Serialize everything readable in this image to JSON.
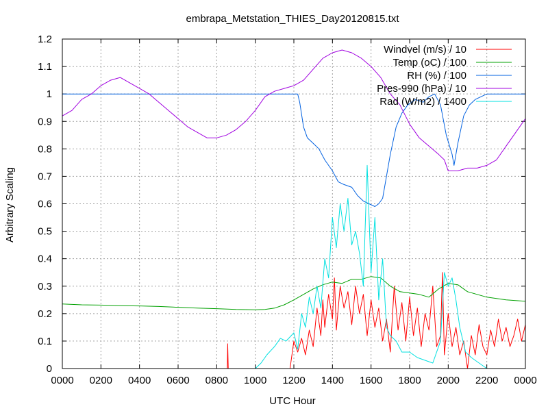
{
  "chart_data": {
    "type": "line",
    "title": "embrapa_Metstation_THIES_Day20120815.txt",
    "xlabel": "UTC Hour",
    "ylabel": "Arbitrary Scaling",
    "xlim": [
      0,
      24
    ],
    "ylim": [
      0,
      1.2
    ],
    "grid": true,
    "legend_position": "top-right",
    "x_ticks": [
      {
        "value": 0,
        "label": "0000"
      },
      {
        "value": 2,
        "label": "0200"
      },
      {
        "value": 4,
        "label": "0400"
      },
      {
        "value": 6,
        "label": "0600"
      },
      {
        "value": 8,
        "label": "0800"
      },
      {
        "value": 10,
        "label": "1000"
      },
      {
        "value": 12,
        "label": "1200"
      },
      {
        "value": 14,
        "label": "1400"
      },
      {
        "value": 16,
        "label": "1600"
      },
      {
        "value": 18,
        "label": "1800"
      },
      {
        "value": 20,
        "label": "2000"
      },
      {
        "value": 22,
        "label": "2200"
      },
      {
        "value": 24,
        "label": "0000"
      }
    ],
    "y_ticks": [
      {
        "value": 0,
        "label": "0"
      },
      {
        "value": 0.1,
        "label": "0.1"
      },
      {
        "value": 0.2,
        "label": "0.2"
      },
      {
        "value": 0.3,
        "label": "0.3"
      },
      {
        "value": 0.4,
        "label": "0.4"
      },
      {
        "value": 0.5,
        "label": "0.5"
      },
      {
        "value": 0.6,
        "label": "0.6"
      },
      {
        "value": 0.7,
        "label": "0.7"
      },
      {
        "value": 0.8,
        "label": "0.8"
      },
      {
        "value": 0.9,
        "label": "0.9"
      },
      {
        "value": 1.0,
        "label": "1"
      },
      {
        "value": 1.1,
        "label": "1.1"
      },
      {
        "value": 1.2,
        "label": "1.2"
      }
    ],
    "series": [
      {
        "name": "Windvel (m/s) / 10",
        "color": "#ff0000",
        "x": [
          8.55,
          8.57,
          8.6,
          11.8,
          12.0,
          12.2,
          12.4,
          12.6,
          12.8,
          13.0,
          13.2,
          13.4,
          13.5,
          13.6,
          13.8,
          14.0,
          14.1,
          14.2,
          14.4,
          14.6,
          14.8,
          15.0,
          15.2,
          15.4,
          15.6,
          15.8,
          16.0,
          16.2,
          16.4,
          16.6,
          16.8,
          17.0,
          17.2,
          17.4,
          17.6,
          17.8,
          18.0,
          18.2,
          18.4,
          18.6,
          18.8,
          19.0,
          19.2,
          19.4,
          19.6,
          19.7,
          19.8,
          20.0,
          20.2,
          20.4,
          20.6,
          20.8,
          21.0,
          21.2,
          21.4,
          21.6,
          21.8,
          22.0,
          22.2,
          22.4,
          22.6,
          22.8,
          23.0,
          23.2,
          23.4,
          23.6,
          23.8,
          24.0
        ],
        "values": [
          0.0,
          0.09,
          0.0,
          0.0,
          0.1,
          0.06,
          0.11,
          0.05,
          0.14,
          0.08,
          0.22,
          0.12,
          0.25,
          0.15,
          0.27,
          0.18,
          0.33,
          0.14,
          0.3,
          0.22,
          0.28,
          0.16,
          0.3,
          0.2,
          0.27,
          0.12,
          0.25,
          0.15,
          0.22,
          0.1,
          0.18,
          0.06,
          0.3,
          0.14,
          0.24,
          0.1,
          0.26,
          0.12,
          0.22,
          0.08,
          0.2,
          0.14,
          0.3,
          0.08,
          0.12,
          0.35,
          0.05,
          0.2,
          0.08,
          0.15,
          0.05,
          0.1,
          0.0,
          0.12,
          0.05,
          0.16,
          0.08,
          0.05,
          0.14,
          0.08,
          0.18,
          0.1,
          0.15,
          0.08,
          0.12,
          0.18,
          0.1,
          0.16
        ]
      },
      {
        "name": "Temp (oC) / 100",
        "color": "#00a000",
        "x": [
          0.0,
          1.0,
          2.0,
          3.0,
          4.0,
          5.0,
          6.0,
          7.0,
          8.0,
          9.0,
          10.0,
          10.5,
          11.0,
          11.5,
          12.0,
          12.5,
          13.0,
          13.5,
          14.0,
          14.5,
          15.0,
          15.5,
          16.0,
          16.5,
          17.0,
          17.5,
          18.0,
          18.5,
          19.0,
          19.5,
          20.0,
          20.5,
          21.0,
          22.0,
          23.0,
          24.0
        ],
        "values": [
          0.235,
          0.232,
          0.231,
          0.229,
          0.228,
          0.226,
          0.223,
          0.22,
          0.218,
          0.215,
          0.214,
          0.215,
          0.22,
          0.232,
          0.25,
          0.27,
          0.29,
          0.305,
          0.315,
          0.31,
          0.325,
          0.325,
          0.335,
          0.33,
          0.3,
          0.28,
          0.275,
          0.27,
          0.26,
          0.29,
          0.31,
          0.305,
          0.28,
          0.26,
          0.25,
          0.245
        ]
      },
      {
        "name": "RH (%) / 100",
        "color": "#0060e0",
        "x": [
          0.0,
          12.2,
          12.3,
          12.5,
          12.7,
          13.0,
          13.3,
          13.6,
          14.0,
          14.3,
          14.6,
          15.0,
          15.3,
          15.6,
          15.9,
          16.2,
          16.4,
          16.6,
          16.8,
          17.0,
          17.3,
          17.6,
          17.9,
          18.3,
          18.7,
          19.0,
          19.3,
          19.6,
          19.9,
          20.2,
          20.3,
          20.5,
          20.8,
          21.1,
          21.4,
          21.7,
          22.0,
          22.3,
          22.6,
          24.0
        ],
        "values": [
          1.0,
          1.0,
          0.97,
          0.88,
          0.84,
          0.82,
          0.8,
          0.76,
          0.72,
          0.68,
          0.67,
          0.66,
          0.63,
          0.61,
          0.6,
          0.59,
          0.6,
          0.62,
          0.7,
          0.78,
          0.88,
          0.93,
          0.96,
          0.98,
          0.97,
          0.99,
          1.0,
          0.96,
          0.85,
          0.78,
          0.74,
          0.82,
          0.92,
          0.96,
          0.98,
          0.99,
          1.0,
          1.0,
          1.0,
          1.0
        ]
      },
      {
        "name": "Pres-990 (hPa) / 10",
        "color": "#a000e0",
        "x": [
          0.0,
          0.5,
          1.0,
          1.5,
          2.0,
          2.5,
          3.0,
          3.5,
          4.0,
          4.5,
          5.0,
          5.5,
          6.0,
          6.5,
          7.0,
          7.5,
          8.0,
          8.5,
          9.0,
          9.5,
          10.0,
          10.5,
          11.0,
          11.5,
          12.0,
          12.5,
          13.0,
          13.5,
          14.0,
          14.5,
          15.0,
          15.5,
          16.0,
          16.5,
          17.0,
          17.5,
          18.0,
          18.5,
          19.0,
          19.5,
          19.8,
          20.0,
          20.5,
          21.0,
          21.5,
          22.0,
          22.5,
          23.0,
          23.5,
          24.0
        ],
        "values": [
          0.92,
          0.94,
          0.98,
          1.0,
          1.03,
          1.05,
          1.06,
          1.04,
          1.02,
          1.0,
          0.97,
          0.94,
          0.91,
          0.88,
          0.86,
          0.84,
          0.84,
          0.85,
          0.87,
          0.9,
          0.94,
          0.99,
          1.01,
          1.02,
          1.03,
          1.05,
          1.09,
          1.13,
          1.15,
          1.16,
          1.15,
          1.13,
          1.1,
          1.06,
          1.0,
          0.96,
          0.89,
          0.84,
          0.81,
          0.78,
          0.76,
          0.72,
          0.72,
          0.73,
          0.73,
          0.74,
          0.76,
          0.81,
          0.86,
          0.91
        ]
      },
      {
        "name": "Rad (W/m2) / 1400",
        "color": "#00e0e0",
        "x": [
          10.0,
          10.3,
          10.6,
          11.0,
          11.3,
          11.6,
          12.0,
          12.2,
          12.4,
          12.6,
          12.8,
          13.0,
          13.2,
          13.4,
          13.6,
          13.8,
          14.0,
          14.2,
          14.4,
          14.6,
          14.8,
          15.0,
          15.2,
          15.4,
          15.6,
          15.8,
          16.0,
          16.2,
          16.4,
          16.6,
          16.8,
          17.0,
          17.3,
          17.6,
          18.0,
          18.4,
          18.8,
          19.2,
          19.6,
          19.8,
          20.0,
          20.2,
          20.4,
          20.6,
          20.9,
          21.2,
          21.6,
          22.0
        ],
        "values": [
          0.0,
          0.02,
          0.05,
          0.08,
          0.11,
          0.1,
          0.13,
          0.07,
          0.2,
          0.15,
          0.26,
          0.2,
          0.3,
          0.22,
          0.4,
          0.33,
          0.55,
          0.44,
          0.6,
          0.5,
          0.62,
          0.45,
          0.5,
          0.42,
          0.3,
          0.74,
          0.35,
          0.55,
          0.25,
          0.4,
          0.15,
          0.12,
          0.1,
          0.06,
          0.06,
          0.04,
          0.03,
          0.02,
          0.1,
          0.35,
          0.3,
          0.33,
          0.25,
          0.15,
          0.06,
          0.04,
          0.02,
          0.0
        ]
      }
    ]
  }
}
